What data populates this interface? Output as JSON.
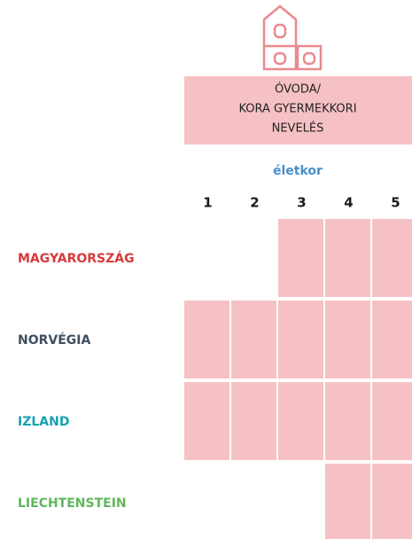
{
  "header": {
    "lines": [
      "ÓVODA/",
      "KORA GYERMEKKORI",
      "NEVELÉS"
    ]
  },
  "axis_label": "életkor",
  "ages": [
    "1",
    "2",
    "3",
    "4",
    "5"
  ],
  "rows": [
    {
      "name": "MAGYARORSZÁG",
      "color": "#d8393b",
      "cells": [
        false,
        false,
        true,
        true,
        true
      ]
    },
    {
      "name": "NORVÉGIA",
      "color": "#3e4f5f",
      "cells": [
        true,
        true,
        true,
        true,
        true
      ]
    },
    {
      "name": "IZLAND",
      "color": "#17a2b0",
      "cells": [
        true,
        true,
        true,
        true,
        true
      ]
    },
    {
      "name": "LIECHTENSTEIN",
      "color": "#5fb75a",
      "cells": [
        false,
        false,
        false,
        true,
        true
      ]
    }
  ]
}
